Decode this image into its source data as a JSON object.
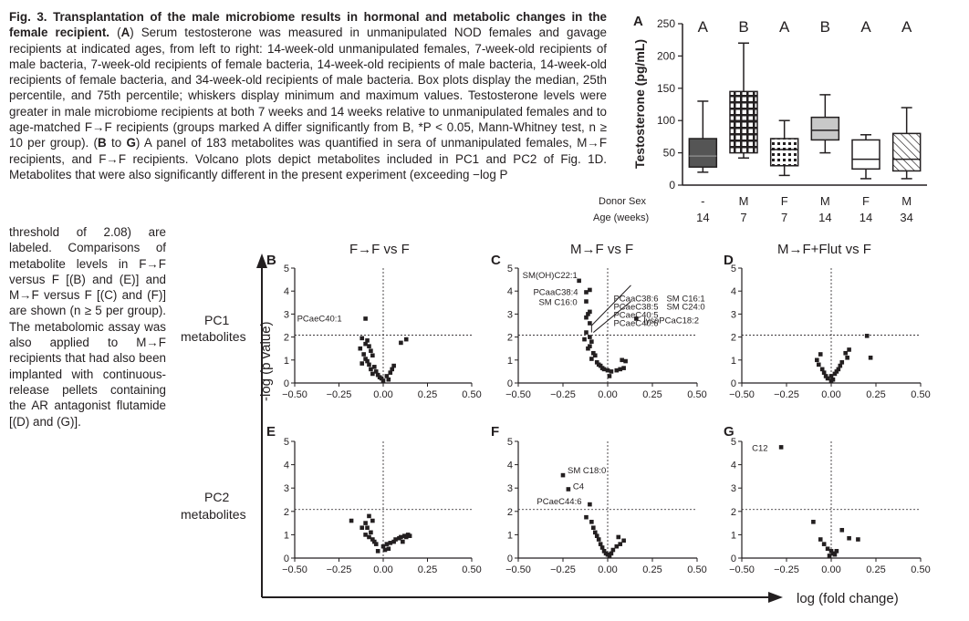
{
  "caption": {
    "fig_label": "Fig. 3.",
    "title": "Transplantation of the male microbiome results in hormonal and metabolic changes in the female recipient.",
    "text_A_prefix": "(",
    "panel_A": "A",
    "text_A": ") Serum testosterone was measured in unmanipulated NOD females and gavage recipients at indicated ages, from left to right: 14-week-old unmanipulated females, 7-week-old recipients of male bacteria, 7-week-old recipients of female bacteria, 14-week-old recipients of male bacteria, 14-week-old recipients of female bacteria, and 34-week-old recipients of male bacteria. Box plots display the median, 25th percentile, and 75th percentile; whiskers display minimum and maximum values. Testosterone levels were greater in male microbiome recipients at both 7 weeks and 14 weeks relative to unmanipulated females and to age-matched F→F recipients (groups marked A differ significantly from B, *P < 0.05, Mann-Whitney test, n ≥ 10 per group). (",
    "panel_BG": "B",
    "to": " to ",
    "panel_G": "G",
    "text_BG": ") A panel of 183 metabolites was quantified in sera of unmanipulated females, M→F recipients, and F→F recipients. Volcano plots depict metabolites included in PC1 and PC2 of Fig. 1D. Metabolites that were also significantly different in the present experiment (exceeding −log P",
    "text_cont": "threshold of 2.08) are labeled. Comparisons of metabolite levels in F→F versus F [(B) and (E)] and M→F versus F [(C) and (F)] are shown (n ≥ 5 per group). The metabolomic assay was also applied to M→F recipients that had also been implanted with continuous-release pellets containing the AR antagonist flutamide [(D) and (G)]."
  },
  "panelA": {
    "letter": "A",
    "ylabel": "Testosterone (pg/mL)",
    "yticks": [
      "0",
      "50",
      "100",
      "150",
      "200",
      "250"
    ],
    "group_letters": [
      "A",
      "B",
      "A",
      "B",
      "A",
      "A"
    ],
    "donor_sex_label": "Donor Sex",
    "age_label": "Age (weeks)",
    "donor_sex": [
      "-",
      "M",
      "F",
      "M",
      "F",
      "M"
    ],
    "age": [
      "14",
      "7",
      "7",
      "14",
      "14",
      "34"
    ]
  },
  "chart_data": [
    {
      "type": "box",
      "panel": "A",
      "ylabel": "Testosterone (pg/mL)",
      "ylim": [
        0,
        250
      ],
      "categories": [
        "- / 14",
        "M / 7",
        "F / 7",
        "M / 14",
        "F / 14",
        "M / 34"
      ],
      "boxes": [
        {
          "min": 20,
          "q1": 28,
          "median": 45,
          "q3": 72,
          "max": 130,
          "fill": "#555555",
          "pattern": "none"
        },
        {
          "min": 42,
          "q1": 50,
          "median": 100,
          "q3": 145,
          "max": 220,
          "fill": "#bfbfbf",
          "pattern": "grid"
        },
        {
          "min": 15,
          "q1": 30,
          "median": 55,
          "q3": 72,
          "max": 100,
          "fill": "#ffffff",
          "pattern": "dots"
        },
        {
          "min": 50,
          "q1": 70,
          "median": 85,
          "q3": 105,
          "max": 140,
          "fill": "#c8c8c8",
          "pattern": "none"
        },
        {
          "min": 10,
          "q1": 25,
          "median": 40,
          "q3": 70,
          "max": 78,
          "fill": "#ffffff",
          "pattern": "none"
        },
        {
          "min": 10,
          "q1": 22,
          "median": 40,
          "q3": 80,
          "max": 120,
          "fill": "#ffffff",
          "pattern": "hatch"
        }
      ]
    },
    {
      "type": "scatter",
      "panel": "B",
      "title": "F→F vs F",
      "row": "PC1",
      "xlim": [
        -0.5,
        0.5
      ],
      "ylim": [
        0,
        5
      ],
      "threshold": 2.08,
      "points": [
        [
          -0.1,
          2.8
        ],
        [
          -0.12,
          1.95
        ],
        [
          -0.09,
          1.85
        ],
        [
          -0.1,
          1.7
        ],
        [
          -0.08,
          1.6
        ],
        [
          -0.13,
          1.5
        ],
        [
          -0.07,
          1.4
        ],
        [
          -0.11,
          1.25
        ],
        [
          -0.06,
          1.2
        ],
        [
          -0.1,
          1.05
        ],
        [
          -0.09,
          0.95
        ],
        [
          -0.12,
          0.85
        ],
        [
          -0.08,
          0.8
        ],
        [
          -0.05,
          0.7
        ],
        [
          -0.07,
          0.6
        ],
        [
          -0.04,
          0.5
        ],
        [
          -0.06,
          0.4
        ],
        [
          -0.03,
          0.35
        ],
        [
          -0.02,
          0.25
        ],
        [
          0.02,
          0.3
        ],
        [
          0.04,
          0.45
        ],
        [
          0.05,
          0.6
        ],
        [
          0.06,
          0.75
        ],
        [
          0.1,
          1.75
        ],
        [
          0.13,
          1.9
        ],
        [
          0.03,
          0.15
        ],
        [
          0.0,
          0.1
        ],
        [
          -0.01,
          0.2
        ]
      ],
      "labels": [
        {
          "text": "PCaeC40:1",
          "x": -0.1,
          "y": 2.8
        }
      ]
    },
    {
      "type": "scatter",
      "panel": "C",
      "title": "M→F vs F",
      "row": "PC1",
      "xlim": [
        -0.5,
        0.5
      ],
      "ylim": [
        0,
        5
      ],
      "threshold": 2.08,
      "points": [
        [
          -0.16,
          4.45
        ],
        [
          -0.1,
          4.05
        ],
        [
          -0.12,
          3.95
        ],
        [
          -0.12,
          3.55
        ],
        [
          -0.1,
          3.1
        ],
        [
          -0.11,
          3.0
        ],
        [
          -0.12,
          2.85
        ],
        [
          -0.1,
          2.6
        ],
        [
          -0.12,
          2.2
        ],
        [
          0.16,
          2.8
        ],
        [
          -0.1,
          2.0
        ],
        [
          -0.13,
          1.9
        ],
        [
          -0.09,
          1.8
        ],
        [
          -0.1,
          1.6
        ],
        [
          -0.11,
          1.5
        ],
        [
          -0.08,
          1.3
        ],
        [
          -0.07,
          1.2
        ],
        [
          -0.09,
          1.05
        ],
        [
          -0.06,
          0.9
        ],
        [
          -0.05,
          0.8
        ],
        [
          -0.04,
          0.75
        ],
        [
          -0.03,
          0.65
        ],
        [
          -0.02,
          0.6
        ],
        [
          0.0,
          0.55
        ],
        [
          0.02,
          0.5
        ],
        [
          0.05,
          0.55
        ],
        [
          0.07,
          0.6
        ],
        [
          0.09,
          0.65
        ],
        [
          0.1,
          0.95
        ],
        [
          0.08,
          1.0
        ],
        [
          0.01,
          0.3
        ]
      ],
      "labels": [
        {
          "text": "SM(OH)C22:1",
          "x": -0.16,
          "y": 4.45
        },
        {
          "text": "PCaaC38:4",
          "x": -0.12,
          "y": 3.95
        },
        {
          "text": "SM C16:0",
          "x": -0.12,
          "y": 3.55
        },
        {
          "text": "PCaaC38:6",
          "x": 0.0,
          "y": 0.0
        },
        {
          "text": "PCaeC38:5",
          "x": 0.0,
          "y": 0.0
        },
        {
          "text": "PCaeC40:5",
          "x": 0.0,
          "y": 0.0
        },
        {
          "text": "PCaeC40:6",
          "x": 0.0,
          "y": 0.0
        },
        {
          "text": "SM C16:1",
          "x": 0.0,
          "y": 0.0
        },
        {
          "text": "SM C24:0",
          "x": 0.0,
          "y": 0.0
        },
        {
          "text": "lysoPCaC18:2",
          "x": 0.16,
          "y": 2.8
        }
      ]
    },
    {
      "type": "scatter",
      "panel": "D",
      "title": "M→F+Flut vs F",
      "row": "PC1",
      "xlim": [
        -0.5,
        0.5
      ],
      "ylim": [
        0,
        5
      ],
      "threshold": 2.08,
      "points": [
        [
          0.2,
          2.05
        ],
        [
          0.22,
          1.1
        ],
        [
          0.1,
          1.45
        ],
        [
          0.08,
          1.3
        ],
        [
          0.09,
          1.1
        ],
        [
          0.06,
          0.9
        ],
        [
          0.05,
          0.75
        ],
        [
          0.04,
          0.6
        ],
        [
          0.03,
          0.5
        ],
        [
          0.02,
          0.4
        ],
        [
          0.0,
          0.3
        ],
        [
          -0.02,
          0.2
        ],
        [
          -0.03,
          0.3
        ],
        [
          -0.04,
          0.45
        ],
        [
          -0.05,
          0.6
        ],
        [
          -0.07,
          0.8
        ],
        [
          -0.08,
          1.0
        ],
        [
          -0.06,
          1.25
        ],
        [
          0.01,
          0.15
        ],
        [
          0.0,
          0.1
        ]
      ],
      "labels": []
    },
    {
      "type": "scatter",
      "panel": "E",
      "row": "PC2",
      "xlim": [
        -0.5,
        0.5
      ],
      "ylim": [
        0,
        5
      ],
      "threshold": 2.08,
      "points": [
        [
          -0.08,
          1.8
        ],
        [
          -0.06,
          1.6
        ],
        [
          -0.1,
          1.5
        ],
        [
          -0.09,
          1.3
        ],
        [
          -0.12,
          1.3
        ],
        [
          -0.07,
          1.1
        ],
        [
          -0.1,
          1.0
        ],
        [
          -0.08,
          0.9
        ],
        [
          -0.06,
          0.8
        ],
        [
          -0.05,
          0.7
        ],
        [
          -0.04,
          0.6
        ],
        [
          -0.18,
          1.6
        ],
        [
          0.0,
          0.5
        ],
        [
          0.02,
          0.6
        ],
        [
          0.04,
          0.65
        ],
        [
          0.06,
          0.7
        ],
        [
          0.07,
          0.8
        ],
        [
          0.09,
          0.85
        ],
        [
          0.1,
          0.9
        ],
        [
          0.12,
          0.95
        ],
        [
          0.13,
          0.9
        ],
        [
          0.14,
          1.0
        ],
        [
          0.15,
          0.95
        ],
        [
          0.11,
          0.7
        ],
        [
          -0.03,
          0.3
        ],
        [
          0.01,
          0.35
        ],
        [
          0.03,
          0.4
        ]
      ],
      "labels": []
    },
    {
      "type": "scatter",
      "panel": "F",
      "row": "PC2",
      "xlim": [
        -0.5,
        0.5
      ],
      "ylim": [
        0,
        5
      ],
      "threshold": 2.08,
      "points": [
        [
          -0.25,
          3.55
        ],
        [
          -0.22,
          2.95
        ],
        [
          -0.1,
          2.3
        ],
        [
          -0.12,
          1.75
        ],
        [
          -0.09,
          1.55
        ],
        [
          -0.08,
          1.3
        ],
        [
          -0.07,
          1.1
        ],
        [
          -0.06,
          0.95
        ],
        [
          -0.05,
          0.8
        ],
        [
          -0.04,
          0.6
        ],
        [
          -0.03,
          0.45
        ],
        [
          -0.02,
          0.3
        ],
        [
          -0.01,
          0.2
        ],
        [
          0.0,
          0.15
        ],
        [
          0.01,
          0.1
        ],
        [
          0.02,
          0.2
        ],
        [
          0.03,
          0.35
        ],
        [
          0.05,
          0.5
        ],
        [
          0.07,
          0.6
        ],
        [
          0.09,
          0.75
        ],
        [
          0.06,
          0.9
        ]
      ],
      "labels": [
        {
          "text": "SM C18:0",
          "x": -0.25,
          "y": 3.55
        },
        {
          "text": "C4",
          "x": -0.22,
          "y": 2.95
        },
        {
          "text": "PCaeC44:6",
          "x": -0.1,
          "y": 2.3
        }
      ]
    },
    {
      "type": "scatter",
      "panel": "G",
      "row": "PC2",
      "xlim": [
        -0.5,
        0.5
      ],
      "ylim": [
        0,
        5
      ],
      "threshold": 2.08,
      "points": [
        [
          -0.28,
          4.75
        ],
        [
          -0.1,
          1.55
        ],
        [
          0.06,
          1.2
        ],
        [
          0.1,
          0.85
        ],
        [
          0.15,
          0.8
        ],
        [
          -0.06,
          0.8
        ],
        [
          -0.04,
          0.6
        ],
        [
          -0.02,
          0.4
        ],
        [
          0.0,
          0.3
        ],
        [
          0.01,
          0.2
        ],
        [
          0.02,
          0.15
        ],
        [
          -0.01,
          0.1
        ],
        [
          0.03,
          0.3
        ]
      ],
      "labels": [
        {
          "text": "C12",
          "x": -0.28,
          "y": 4.75
        }
      ]
    }
  ],
  "volcano": {
    "titles": {
      "B": "F→F vs F",
      "C": "M→F vs F",
      "D": "M→F+Flut vs F"
    },
    "letters": [
      "B",
      "C",
      "D",
      "E",
      "F",
      "G"
    ],
    "yticks": [
      "0",
      "1",
      "2",
      "3",
      "4",
      "5"
    ],
    "xticks": [
      "−0.50",
      "−0.25",
      "0.00",
      "0.25",
      "0.50"
    ],
    "row1_label": [
      "PC1",
      "metabolites"
    ],
    "row2_label": [
      "PC2",
      "metabolites"
    ],
    "yaxis_label": "-log (p value)",
    "xaxis_label": "log (fold change)"
  }
}
